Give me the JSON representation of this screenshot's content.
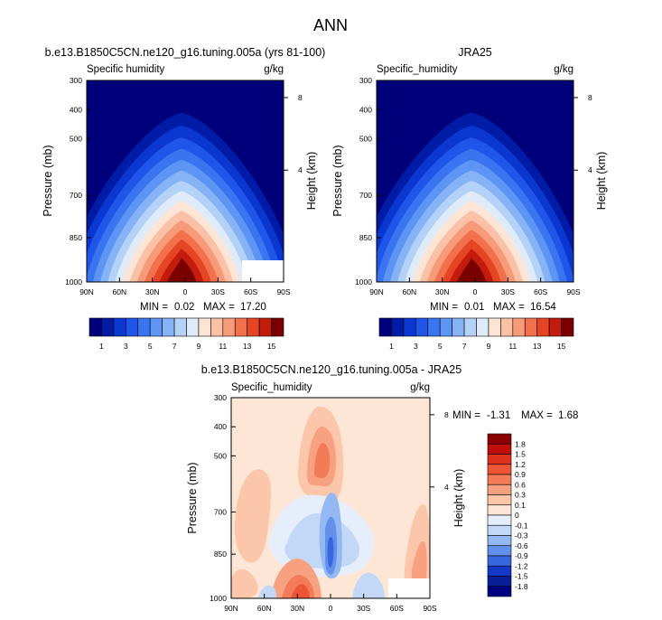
{
  "figure_title": "ANN",
  "chart_data": [
    {
      "type": "heatmap",
      "title": "b.e13.B1850C5CN.ne120_g16.tuning.005a (yrs 81-100)",
      "left_label": "Specific humidity",
      "right_label": "g/kg",
      "xlabel": "",
      "ylabel": "Pressure (mb)",
      "y2label": "Height (km)",
      "x_ticks": [
        "90N",
        "60N",
        "30N",
        "0",
        "30S",
        "60S",
        "90S"
      ],
      "y_ticks": [
        "300",
        "400",
        "500",
        "700",
        "850",
        "1000"
      ],
      "y2_ticks": [
        "8",
        "4"
      ],
      "stats": {
        "min_label": "MIN =",
        "min": "0.02",
        "max_label": "MAX =",
        "max": "17.20"
      },
      "colorbar": {
        "levels": [
          1,
          2,
          3,
          4,
          5,
          6,
          7,
          8,
          9,
          10,
          11,
          12,
          13,
          14,
          15
        ],
        "tick_labels": [
          "1",
          "3",
          "5",
          "7",
          "9",
          "11",
          "13",
          "15"
        ],
        "colors": [
          "#00007a",
          "#001ba5",
          "#0a37cf",
          "#1f55e8",
          "#3a74f0",
          "#5c95f3",
          "#86b3f5",
          "#b4d1f7",
          "#e0ebfa",
          "#fde5d6",
          "#fbc1a6",
          "#f79a78",
          "#f2704b",
          "#e54525",
          "#c41c0c",
          "#7a0000"
        ]
      },
      "xlim": [
        -90,
        90
      ],
      "ylim": [
        1000,
        300
      ],
      "missing_region_note": "white block over Antarctic surface"
    },
    {
      "type": "heatmap",
      "title": "JRA25",
      "left_label": "Specific_humidity",
      "right_label": "g/kg",
      "xlabel": "",
      "ylabel": "Pressure (mb)",
      "y2label": "Height (km)",
      "x_ticks": [
        "90N",
        "60N",
        "30N",
        "0",
        "30S",
        "60S",
        "90S"
      ],
      "y_ticks": [
        "300",
        "400",
        "500",
        "700",
        "850",
        "1000"
      ],
      "y2_ticks": [
        "8",
        "4"
      ],
      "stats": {
        "min_label": "MIN =",
        "min": "0.01",
        "max_label": "MAX =",
        "max": "16.54"
      },
      "colorbar": {
        "levels": [
          1,
          2,
          3,
          4,
          5,
          6,
          7,
          8,
          9,
          10,
          11,
          12,
          13,
          14,
          15
        ],
        "tick_labels": [
          "1",
          "3",
          "5",
          "7",
          "9",
          "11",
          "13",
          "15"
        ],
        "colors": [
          "#00007a",
          "#001ba5",
          "#0a37cf",
          "#1f55e8",
          "#3a74f0",
          "#5c95f3",
          "#86b3f5",
          "#b4d1f7",
          "#e0ebfa",
          "#fde5d6",
          "#fbc1a6",
          "#f79a78",
          "#f2704b",
          "#e54525",
          "#c41c0c",
          "#7a0000"
        ]
      },
      "xlim": [
        -90,
        90
      ],
      "ylim": [
        1000,
        300
      ]
    },
    {
      "type": "heatmap",
      "title": "b.e13.B1850C5CN.ne120_g16.tuning.005a - JRA25",
      "left_label": "Specific_humidity",
      "right_label": "g/kg",
      "xlabel": "",
      "ylabel": "Pressure (mb)",
      "y2label": "Height (km)",
      "x_ticks": [
        "90N",
        "60N",
        "30N",
        "0",
        "30S",
        "60S",
        "90S"
      ],
      "y_ticks": [
        "300",
        "400",
        "500",
        "700",
        "850",
        "1000"
      ],
      "y2_ticks": [
        "8",
        "4"
      ],
      "stats": {
        "min_label": "MIN =",
        "min": "-1.31",
        "max_label": "MAX =",
        "max": "1.68"
      },
      "colorbar": {
        "levels": [
          1.8,
          1.5,
          1.2,
          0.9,
          0.6,
          0.3,
          0.1,
          0,
          -0.1,
          -0.3,
          -0.6,
          -0.9,
          -1.2,
          -1.5,
          -1.8
        ],
        "tick_labels": [
          "1.8",
          "1.5",
          "1.2",
          "0.9",
          "0.6",
          "0.3",
          "0.1",
          "0",
          "-0.1",
          "-0.3",
          "-0.6",
          "-0.9",
          "-1.2",
          "-1.5",
          "-1.8"
        ],
        "colors": [
          "#8b0000",
          "#c00f0a",
          "#e0301e",
          "#ee5535",
          "#f47b57",
          "#f8a180",
          "#fbc6aa",
          "#fde6d6",
          "#e6eefc",
          "#c3d8f7",
          "#93b8f2",
          "#6390ea",
          "#3766df",
          "#1238c8",
          "#0a1e96",
          "#000080"
        ]
      },
      "xlim": [
        -90,
        90
      ],
      "ylim": [
        1000,
        300
      ]
    }
  ]
}
